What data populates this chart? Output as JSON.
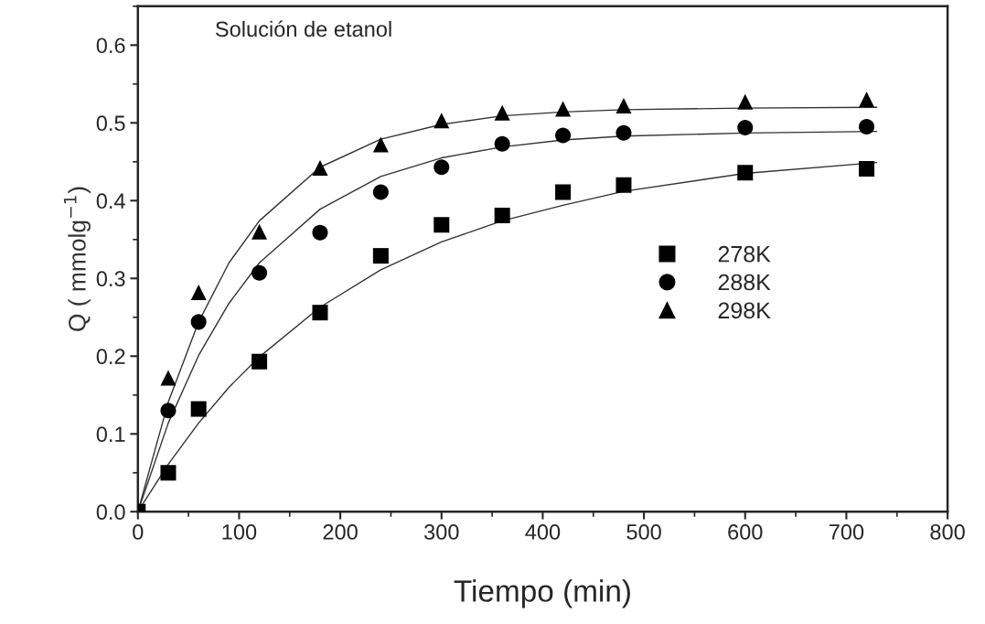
{
  "chart_data": {
    "type": "scatter",
    "xlabel": "Tiempo (min)",
    "ylabel": "Q ( mmolg$^{−1}$)",
    "annotations": [
      "Solución de etanol"
    ],
    "xlim": [
      0,
      800
    ],
    "xticks": [
      0,
      100,
      200,
      300,
      400,
      500,
      600,
      700,
      800
    ],
    "ylim": [
      0,
      0.65
    ],
    "yticks": [
      {
        "value": 0,
        "label": "0.0"
      },
      0.1,
      0.2,
      0.3,
      0.4,
      0.5,
      0.6
    ],
    "grid": false,
    "legend": "right",
    "x": [
      0,
      30,
      60,
      120,
      180,
      240,
      300,
      360,
      420,
      480,
      600,
      720
    ],
    "series": [
      {
        "name": "278K",
        "color": "#000000",
        "marker": "square",
        "values": [
          0,
          0.05,
          0.132,
          0.193,
          0.256,
          0.329,
          0.369,
          0.381,
          0.411,
          0.42,
          0.436,
          0.441
        ]
      },
      {
        "name": "288K",
        "color": "#000000",
        "marker": "circle",
        "x": [
          30,
          60,
          120,
          180,
          240,
          300,
          360,
          420,
          480,
          600,
          720
        ],
        "values": [
          0.13,
          0.244,
          0.307,
          0.359,
          0.411,
          0.443,
          0.473,
          0.484,
          0.487,
          0.494,
          0.495
        ]
      },
      {
        "name": "298K",
        "color": "#000000",
        "marker": "triangle",
        "x": [
          30,
          60,
          120,
          180,
          240,
          300,
          360,
          420,
          480,
          600,
          720
        ],
        "values": [
          0.172,
          0.282,
          0.36,
          0.442,
          0.472,
          0.503,
          0.513,
          0.518,
          0.522,
          0.527,
          0.53
        ]
      },
      {
        "type": "line",
        "color": "#333333",
        "marker": "none",
        "line_style": "solid",
        "x": [
          0,
          30,
          60,
          90,
          120,
          180,
          240,
          300,
          360,
          420,
          480,
          600,
          730
        ],
        "values": [
          0,
          0.061,
          0.114,
          0.16,
          0.199,
          0.263,
          0.311,
          0.347,
          0.374,
          0.394,
          0.412,
          0.435,
          0.449
        ]
      },
      {
        "type": "line",
        "color": "#333333",
        "marker": "none",
        "line_style": "solid",
        "x": [
          0,
          30,
          60,
          90,
          120,
          180,
          240,
          300,
          360,
          420,
          480,
          600,
          730
        ],
        "values": [
          0,
          0.114,
          0.201,
          0.268,
          0.32,
          0.389,
          0.431,
          0.455,
          0.469,
          0.478,
          0.483,
          0.487,
          0.489
        ]
      },
      {
        "type": "line",
        "color": "#333333",
        "marker": "none",
        "line_style": "solid",
        "x": [
          0,
          30,
          60,
          90,
          120,
          180,
          240,
          300,
          360,
          420,
          480,
          600,
          730
        ],
        "values": [
          0,
          0.141,
          0.244,
          0.32,
          0.374,
          0.443,
          0.479,
          0.498,
          0.509,
          0.514,
          0.517,
          0.519,
          0.52
        ]
      }
    ]
  }
}
